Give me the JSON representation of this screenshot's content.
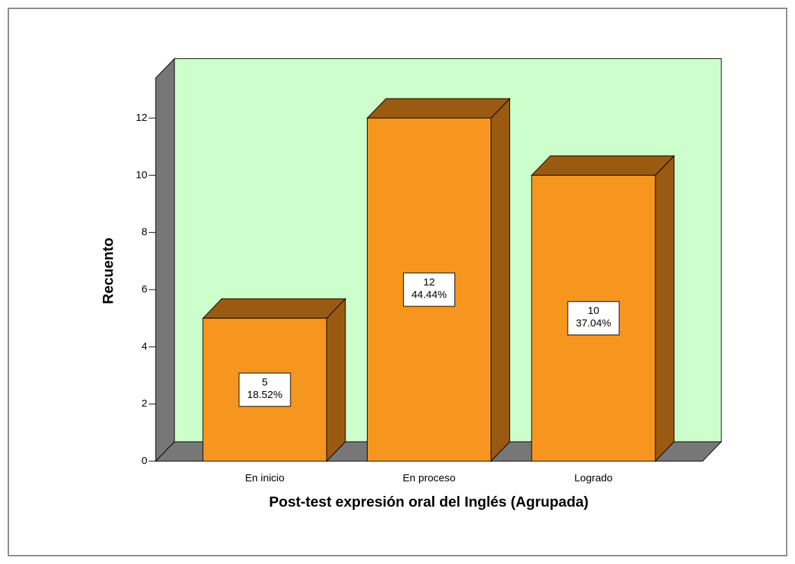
{
  "chart_data": {
    "type": "bar3d",
    "x_label": "Post-test expresión oral del Inglés (Agrupada)",
    "y_label": "Recuento",
    "categories": [
      "En inicio",
      "En proceso",
      "Logrado"
    ],
    "values": [
      5,
      12,
      10
    ],
    "percentages": [
      18.52,
      44.44,
      37.04
    ],
    "percentage_labels": [
      "18.52%",
      "44.44%",
      "37.04%"
    ],
    "color": "#f7961e",
    "ylim": [
      0,
      13.4
    ],
    "yticks": [
      0,
      2,
      4,
      6,
      8,
      10,
      12
    ],
    "wall_color": "#ccffcc"
  }
}
